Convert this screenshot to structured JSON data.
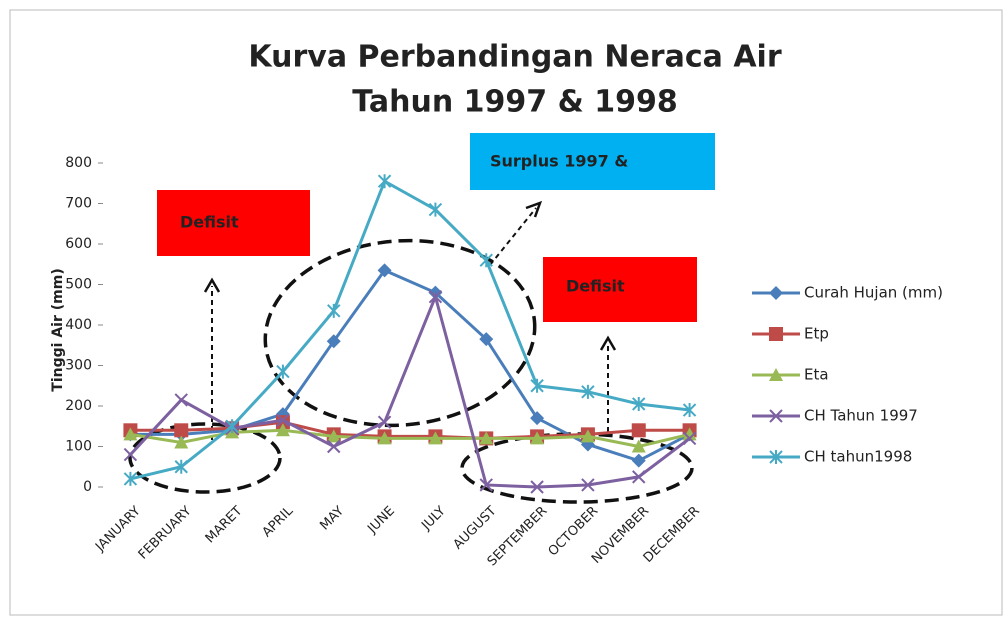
{
  "chart_data": {
    "type": "line",
    "title": [
      "Kurva Perbandingan Neraca Air",
      "Tahun 1997 & 1998"
    ],
    "y_label": "Tinggi Air (mm)",
    "categories": [
      "JANUARY",
      "FEBRUARY",
      "MARET",
      "APRIL",
      "MAY",
      "JUNE",
      "JULY",
      "AUGUST",
      "SEPTEMBER",
      "OCTOBER",
      "NOVEMBER",
      "DECEMBER"
    ],
    "series": [
      {
        "name": "Curah Hujan (mm)",
        "color": "#4a7ebb",
        "marker": "diamond",
        "values": [
          130,
          130,
          140,
          180,
          360,
          535,
          480,
          365,
          170,
          105,
          65,
          130
        ]
      },
      {
        "name": "Etp",
        "color": "#be4b48",
        "marker": "square",
        "values": [
          140,
          140,
          145,
          160,
          130,
          125,
          125,
          120,
          125,
          130,
          140,
          140
        ]
      },
      {
        "name": "Eta",
        "color": "#98b954",
        "marker": "triangle",
        "values": [
          130,
          110,
          135,
          140,
          125,
          120,
          120,
          120,
          120,
          125,
          100,
          130
        ]
      },
      {
        "name": "CH Tahun 1997",
        "color": "#7d60a0",
        "marker": "x",
        "values": [
          80,
          215,
          145,
          165,
          100,
          160,
          470,
          5,
          0,
          5,
          25,
          120
        ]
      },
      {
        "name": "CH tahun1998",
        "color": "#46aac5",
        "marker": "star",
        "values": [
          20,
          50,
          150,
          285,
          435,
          755,
          685,
          560,
          250,
          235,
          205,
          190
        ]
      }
    ],
    "ylim": [
      0,
      800
    ],
    "yticks": [
      0,
      100,
      200,
      300,
      400,
      500,
      600,
      700,
      800
    ],
    "annotations": [
      "Defisit",
      "Surplus 1997 &",
      "Defisit"
    ]
  }
}
